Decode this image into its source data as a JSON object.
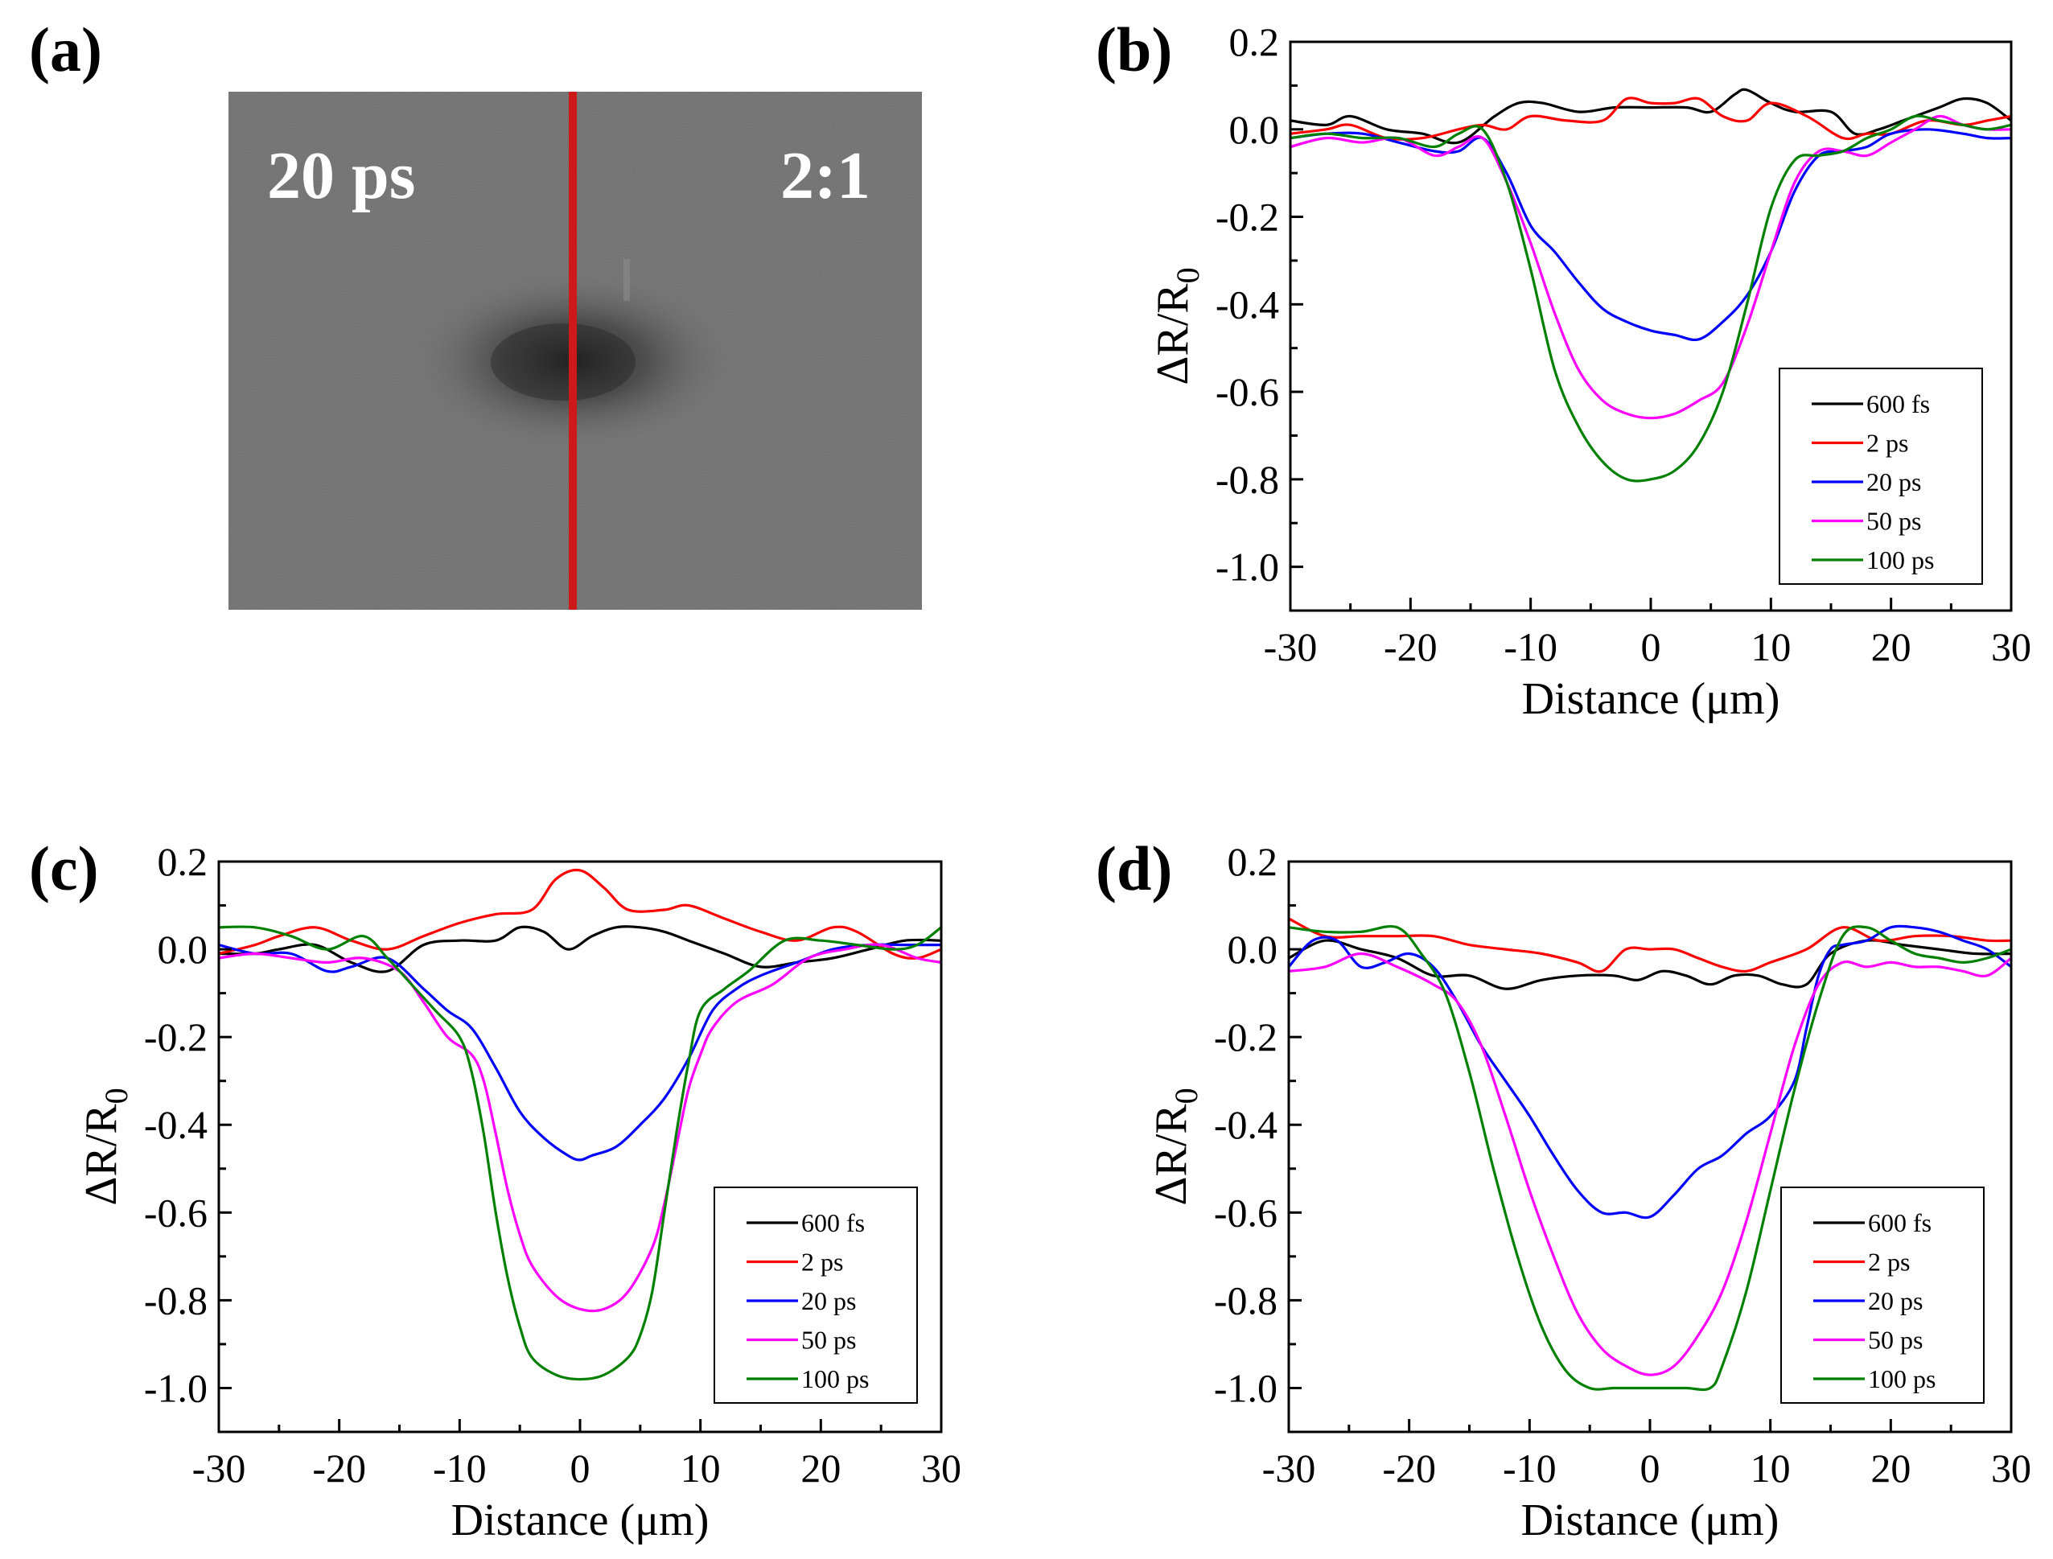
{
  "figure": {
    "panel_a_label": "(a)",
    "micrograph": {
      "delay_text": "20 ps",
      "ratio_text": "2:1",
      "line_color": "#cc1a1a",
      "background_color": "#6f6f6f"
    }
  },
  "chart_data": [
    {
      "type": "line",
      "panel": "(b)",
      "xlabel": "Distance (μm)",
      "ylabel": "ΔR/R0",
      "xlim": [
        -30,
        30
      ],
      "ylim": [
        -1.1,
        0.2
      ],
      "xticks": [
        -30,
        -20,
        -10,
        0,
        10,
        20,
        30
      ],
      "yticks": [
        0.2,
        0.0,
        -0.2,
        -0.4,
        -0.6,
        -0.8,
        -1.0
      ],
      "ytick_labels": [
        "0.2",
        "0.0",
        "-0.2",
        "-0.4",
        "-0.6",
        "-0.8",
        "-1.0"
      ],
      "legend_position": "bottom-right",
      "series": [
        {
          "name": "600 fs",
          "color": "#000000",
          "x": [
            -30,
            -27,
            -25,
            -22,
            -19,
            -16,
            -13,
            -11,
            -9,
            -6,
            -3,
            0,
            3,
            5,
            7,
            8,
            10,
            12,
            15,
            17,
            19,
            21,
            24,
            26,
            28,
            30
          ],
          "y": [
            0.02,
            0.01,
            0.03,
            0.0,
            -0.01,
            -0.03,
            0.03,
            0.06,
            0.06,
            0.04,
            0.05,
            0.05,
            0.05,
            0.04,
            0.08,
            0.09,
            0.06,
            0.04,
            0.04,
            -0.01,
            0.0,
            0.02,
            0.05,
            0.07,
            0.06,
            0.02
          ]
        },
        {
          "name": "2 ps",
          "color": "#ff0000",
          "x": [
            -30,
            -27,
            -25,
            -22,
            -19,
            -16,
            -14,
            -12,
            -10,
            -7,
            -4,
            -2,
            0,
            2,
            4,
            6,
            8,
            10,
            13,
            16,
            18,
            20,
            23,
            26,
            28,
            30
          ],
          "y": [
            -0.01,
            0.0,
            0.01,
            -0.02,
            -0.02,
            0.0,
            0.01,
            0.0,
            0.03,
            0.02,
            0.02,
            0.07,
            0.06,
            0.06,
            0.07,
            0.03,
            0.02,
            0.06,
            0.03,
            -0.02,
            -0.01,
            -0.01,
            0.02,
            0.01,
            0.02,
            0.03
          ]
        },
        {
          "name": "20 ps",
          "color": "#0000ff",
          "x": [
            -30,
            -27,
            -24,
            -21,
            -18,
            -16,
            -14,
            -12,
            -10,
            -8,
            -6,
            -4,
            -2,
            0,
            2,
            4,
            6,
            8,
            10,
            12,
            14,
            16,
            18,
            20,
            23,
            26,
            28,
            30
          ],
          "y": [
            -0.02,
            -0.01,
            -0.01,
            -0.03,
            -0.05,
            -0.05,
            -0.02,
            -0.1,
            -0.22,
            -0.28,
            -0.35,
            -0.41,
            -0.44,
            -0.46,
            -0.47,
            -0.48,
            -0.44,
            -0.38,
            -0.28,
            -0.14,
            -0.06,
            -0.05,
            -0.04,
            -0.01,
            0.0,
            -0.01,
            -0.02,
            -0.02
          ]
        },
        {
          "name": "50 ps",
          "color": "#ff00ff",
          "x": [
            -30,
            -27,
            -24,
            -21,
            -18,
            -16,
            -14,
            -12,
            -10,
            -8,
            -6,
            -4,
            -2,
            0,
            2,
            4,
            6,
            8,
            10,
            12,
            14,
            16,
            18,
            20,
            22,
            24,
            26,
            28,
            30
          ],
          "y": [
            -0.04,
            -0.02,
            -0.03,
            -0.02,
            -0.06,
            -0.04,
            -0.02,
            -0.12,
            -0.26,
            -0.42,
            -0.55,
            -0.62,
            -0.65,
            -0.66,
            -0.65,
            -0.62,
            -0.58,
            -0.45,
            -0.28,
            -0.12,
            -0.05,
            -0.05,
            -0.06,
            -0.03,
            0.0,
            0.03,
            0.01,
            0.0,
            0.0
          ]
        },
        {
          "name": "100 ps",
          "color": "#008000",
          "x": [
            -30,
            -27,
            -24,
            -21,
            -18,
            -16,
            -14,
            -12,
            -10,
            -8,
            -6,
            -4,
            -2,
            0,
            2,
            4,
            6,
            8,
            10,
            12,
            14,
            16,
            18,
            20,
            22,
            24,
            26,
            28,
            30
          ],
          "y": [
            -0.02,
            -0.01,
            -0.02,
            -0.02,
            -0.04,
            -0.01,
            0.0,
            -0.12,
            -0.32,
            -0.55,
            -0.68,
            -0.76,
            -0.8,
            -0.8,
            -0.78,
            -0.72,
            -0.6,
            -0.4,
            -0.18,
            -0.07,
            -0.06,
            -0.05,
            -0.02,
            0.0,
            0.03,
            0.02,
            0.01,
            0.0,
            0.01
          ]
        }
      ]
    },
    {
      "type": "line",
      "panel": "(c)",
      "xlabel": "Distance (μm)",
      "ylabel": "ΔR/R0",
      "xlim": [
        -30,
        30
      ],
      "ylim": [
        -1.1,
        0.2
      ],
      "xticks": [
        -30,
        -20,
        -10,
        0,
        10,
        20,
        30
      ],
      "yticks": [
        0.2,
        0.0,
        -0.2,
        -0.4,
        -0.6,
        -0.8,
        -1.0
      ],
      "ytick_labels": [
        "0.2",
        "0.0",
        "-0.2",
        "-0.4",
        "-0.6",
        "-0.8",
        "-1.0"
      ],
      "legend_position": "bottom-right",
      "series": [
        {
          "name": "600 fs",
          "color": "#000000",
          "x": [
            -30,
            -27,
            -25,
            -22,
            -19,
            -16,
            -13,
            -10,
            -7,
            -5,
            -3,
            -1,
            1,
            3,
            5,
            7,
            9,
            12,
            15,
            18,
            21,
            24,
            27,
            30
          ],
          "y": [
            -0.01,
            -0.01,
            0.0,
            0.01,
            -0.03,
            -0.05,
            0.01,
            0.02,
            0.02,
            0.05,
            0.04,
            0.0,
            0.03,
            0.05,
            0.05,
            0.04,
            0.02,
            -0.01,
            -0.04,
            -0.03,
            -0.02,
            0.0,
            0.02,
            0.02
          ]
        },
        {
          "name": "2 ps",
          "color": "#ff0000",
          "x": [
            -30,
            -27,
            -25,
            -22,
            -19,
            -16,
            -13,
            -10,
            -7,
            -4,
            -2,
            0,
            2,
            4,
            7,
            9,
            12,
            15,
            18,
            21,
            23,
            26,
            28,
            30
          ],
          "y": [
            -0.01,
            0.01,
            0.03,
            0.05,
            0.02,
            0.0,
            0.03,
            0.06,
            0.08,
            0.09,
            0.16,
            0.18,
            0.14,
            0.09,
            0.09,
            0.1,
            0.07,
            0.04,
            0.02,
            0.05,
            0.04,
            -0.01,
            -0.02,
            0.0
          ]
        },
        {
          "name": "20 ps",
          "color": "#0000ff",
          "x": [
            -30,
            -27,
            -24,
            -21,
            -19,
            -16,
            -13,
            -11,
            -9,
            -7,
            -5,
            -3,
            -1,
            0,
            1,
            3,
            5,
            7,
            9,
            11,
            13,
            15,
            18,
            21,
            24,
            27,
            30
          ],
          "y": [
            0.01,
            -0.01,
            -0.01,
            -0.05,
            -0.04,
            -0.02,
            -0.09,
            -0.14,
            -0.18,
            -0.27,
            -0.37,
            -0.43,
            -0.47,
            -0.48,
            -0.47,
            -0.45,
            -0.4,
            -0.34,
            -0.25,
            -0.14,
            -0.09,
            -0.06,
            -0.03,
            0.0,
            0.01,
            0.01,
            0.01
          ]
        },
        {
          "name": "50 ps",
          "color": "#ff00ff",
          "x": [
            -30,
            -27,
            -24,
            -21,
            -18,
            -15,
            -13,
            -11,
            -9,
            -8,
            -7,
            -6,
            -5,
            -4,
            -2,
            0,
            2,
            4,
            6,
            7,
            8,
            9,
            10,
            11,
            13,
            16,
            19,
            22,
            25,
            28,
            30
          ],
          "y": [
            -0.02,
            -0.01,
            -0.02,
            -0.03,
            -0.02,
            -0.05,
            -0.12,
            -0.2,
            -0.24,
            -0.3,
            -0.42,
            -0.55,
            -0.65,
            -0.72,
            -0.79,
            -0.82,
            -0.82,
            -0.78,
            -0.68,
            -0.58,
            -0.45,
            -0.32,
            -0.24,
            -0.18,
            -0.12,
            -0.08,
            -0.02,
            0.0,
            0.01,
            -0.02,
            -0.03
          ]
        },
        {
          "name": "100 ps",
          "color": "#008000",
          "x": [
            -30,
            -27,
            -24,
            -21,
            -18,
            -16,
            -14,
            -12,
            -10,
            -9,
            -8,
            -7,
            -6,
            -5,
            -4,
            -2,
            0,
            2,
            4,
            5,
            6,
            7,
            8,
            9,
            10,
            12,
            14,
            17,
            20,
            23,
            26,
            28,
            30
          ],
          "y": [
            0.05,
            0.05,
            0.03,
            0.0,
            0.03,
            -0.02,
            -0.08,
            -0.14,
            -0.2,
            -0.28,
            -0.42,
            -0.6,
            -0.75,
            -0.86,
            -0.93,
            -0.97,
            -0.98,
            -0.97,
            -0.93,
            -0.88,
            -0.78,
            -0.6,
            -0.42,
            -0.26,
            -0.14,
            -0.09,
            -0.05,
            0.02,
            0.02,
            0.01,
            0.0,
            0.01,
            0.05
          ]
        }
      ]
    },
    {
      "type": "line",
      "panel": "(d)",
      "xlabel": "Distance (μm)",
      "ylabel": "ΔR/R0",
      "xlim": [
        -30,
        30
      ],
      "ylim": [
        -1.1,
        0.2
      ],
      "xticks": [
        -30,
        -20,
        -10,
        0,
        10,
        20,
        30
      ],
      "yticks": [
        0.2,
        0.0,
        -0.2,
        -0.4,
        -0.6,
        -0.8,
        -1.0
      ],
      "ytick_labels": [
        "0.2",
        "0.0",
        "-0.2",
        "-0.4",
        "-0.6",
        "-0.8",
        "-1.0"
      ],
      "legend_position": "bottom-right",
      "series": [
        {
          "name": "600 fs",
          "color": "#000000",
          "x": [
            -30,
            -27,
            -24,
            -21,
            -18,
            -15,
            -12,
            -9,
            -6,
            -3,
            -1,
            1,
            3,
            5,
            7,
            9,
            11,
            13,
            15,
            18,
            21,
            24,
            27,
            30
          ],
          "y": [
            -0.02,
            0.02,
            0.0,
            -0.02,
            -0.06,
            -0.06,
            -0.09,
            -0.07,
            -0.06,
            -0.06,
            -0.07,
            -0.05,
            -0.06,
            -0.08,
            -0.06,
            -0.06,
            -0.08,
            -0.08,
            -0.01,
            0.02,
            0.01,
            0.0,
            -0.01,
            -0.01
          ]
        },
        {
          "name": "2 ps",
          "color": "#ff0000",
          "x": [
            -30,
            -27,
            -24,
            -21,
            -18,
            -15,
            -12,
            -9,
            -6,
            -4,
            -2,
            0,
            2,
            4,
            6,
            8,
            10,
            13,
            16,
            19,
            22,
            25,
            28,
            30
          ],
          "y": [
            0.07,
            0.03,
            0.03,
            0.03,
            0.03,
            0.01,
            0.0,
            -0.01,
            -0.03,
            -0.05,
            0.0,
            0.0,
            0.0,
            -0.02,
            -0.04,
            -0.05,
            -0.03,
            0.0,
            0.05,
            0.02,
            0.03,
            0.03,
            0.02,
            0.02
          ]
        },
        {
          "name": "20 ps",
          "color": "#0000ff",
          "x": [
            -30,
            -28,
            -26,
            -24,
            -22,
            -20,
            -18,
            -16,
            -14,
            -12,
            -10,
            -8,
            -6,
            -4,
            -2,
            0,
            2,
            4,
            6,
            8,
            10,
            12,
            13,
            14,
            15,
            16,
            18,
            20,
            22,
            24,
            26,
            28,
            30
          ],
          "y": [
            -0.04,
            0.02,
            0.02,
            -0.04,
            -0.03,
            -0.01,
            -0.04,
            -0.12,
            -0.22,
            -0.3,
            -0.38,
            -0.47,
            -0.55,
            -0.6,
            -0.6,
            -0.61,
            -0.56,
            -0.5,
            -0.47,
            -0.42,
            -0.38,
            -0.3,
            -0.18,
            -0.06,
            0.0,
            0.01,
            0.02,
            0.05,
            0.05,
            0.04,
            0.02,
            0.0,
            -0.04
          ]
        },
        {
          "name": "50 ps",
          "color": "#ff00ff",
          "x": [
            -30,
            -27,
            -24,
            -21,
            -18,
            -16,
            -14,
            -12,
            -10,
            -8,
            -6,
            -4,
            -2,
            0,
            2,
            4,
            6,
            8,
            10,
            12,
            14,
            16,
            18,
            20,
            22,
            24,
            26,
            28,
            30
          ],
          "y": [
            -0.05,
            -0.04,
            -0.01,
            -0.04,
            -0.08,
            -0.12,
            -0.22,
            -0.38,
            -0.55,
            -0.7,
            -0.83,
            -0.91,
            -0.95,
            -0.97,
            -0.95,
            -0.88,
            -0.78,
            -0.62,
            -0.42,
            -0.22,
            -0.08,
            -0.03,
            -0.04,
            -0.03,
            -0.04,
            -0.04,
            -0.05,
            -0.06,
            -0.02
          ]
        },
        {
          "name": "100 ps",
          "color": "#008000",
          "x": [
            -30,
            -27,
            -24,
            -21,
            -19,
            -17,
            -15,
            -13,
            -11,
            -9,
            -7,
            -5,
            -3,
            -1,
            1,
            3,
            5,
            6,
            8,
            10,
            12,
            14,
            16,
            18,
            20,
            22,
            24,
            26,
            28,
            30
          ],
          "y": [
            0.05,
            0.04,
            0.04,
            0.05,
            -0.01,
            -0.1,
            -0.28,
            -0.5,
            -0.7,
            -0.86,
            -0.96,
            -1.0,
            -1.0,
            -1.0,
            -1.0,
            -1.0,
            -1.0,
            -0.95,
            -0.78,
            -0.55,
            -0.32,
            -0.12,
            0.03,
            0.05,
            0.02,
            -0.01,
            -0.02,
            -0.03,
            -0.02,
            0.0
          ]
        }
      ]
    }
  ]
}
